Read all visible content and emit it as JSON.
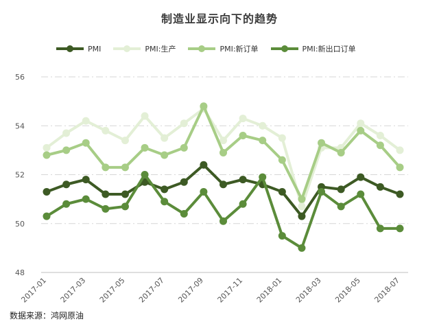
{
  "chart_data": {
    "type": "line",
    "title": "制造业显示向下的趋势",
    "xlabel": "",
    "ylabel": "",
    "ylim": [
      48,
      56
    ],
    "yticks": [
      48,
      50,
      52,
      54,
      56
    ],
    "grid": true,
    "legend_position": "top",
    "x": [
      "2017-01",
      "2017-02",
      "2017-03",
      "2017-04",
      "2017-05",
      "2017-06",
      "2017-07",
      "2017-08",
      "2017-09",
      "2017-10",
      "2017-11",
      "2017-12",
      "2018-01",
      "2018-02",
      "2018-03",
      "2018-04",
      "2018-05",
      "2018-06",
      "2018-07"
    ],
    "xtick_labels": [
      "2017-01",
      "2017-03",
      "2017-05",
      "2017-07",
      "2017-09",
      "2017-11",
      "2018-01",
      "2018-03",
      "2018-05",
      "2018-07"
    ],
    "series": [
      {
        "name": "PMI",
        "color": "#3d5a24",
        "values": [
          51.3,
          51.6,
          51.8,
          51.2,
          51.2,
          51.7,
          51.4,
          51.7,
          52.4,
          51.6,
          51.8,
          51.6,
          51.3,
          50.3,
          51.5,
          51.4,
          51.9,
          51.5,
          51.2
        ]
      },
      {
        "name": "PMI:生产",
        "color": "#e3efd6",
        "values": [
          53.1,
          53.7,
          54.2,
          53.8,
          53.4,
          54.4,
          53.5,
          54.1,
          54.7,
          53.4,
          54.3,
          54.0,
          53.5,
          50.7,
          53.1,
          53.1,
          54.1,
          53.6,
          53.0
        ]
      },
      {
        "name": "PMI:新订单",
        "color": "#a7cd86",
        "values": [
          52.8,
          53.0,
          53.3,
          52.3,
          52.3,
          53.1,
          52.8,
          53.1,
          54.8,
          52.9,
          53.6,
          53.4,
          52.6,
          51.0,
          53.3,
          52.9,
          53.8,
          53.2,
          52.3
        ]
      },
      {
        "name": "PMI:新出口订单",
        "color": "#5b8c3a",
        "values": [
          50.3,
          50.8,
          51.0,
          50.6,
          50.7,
          52.0,
          50.9,
          50.4,
          51.3,
          50.1,
          50.8,
          51.9,
          49.5,
          49.0,
          51.3,
          50.7,
          51.2,
          49.8,
          49.8
        ]
      }
    ]
  },
  "source": "数据来源：鸿网原油"
}
